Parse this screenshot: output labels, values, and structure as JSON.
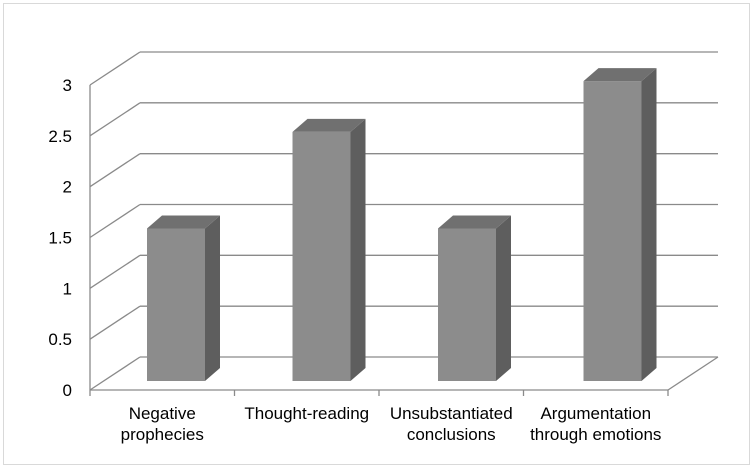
{
  "chart_data": {
    "type": "bar",
    "categories": [
      [
        "Negative",
        "prophecies"
      ],
      [
        "Thought-reading"
      ],
      [
        "Unsubstantiated",
        "conclusions"
      ],
      [
        "Argumentation",
        "through emotions"
      ]
    ],
    "values": [
      1.5,
      2.45,
      1.5,
      2.95
    ],
    "ylim": [
      0,
      3
    ],
    "yticks": [
      "0",
      "0.5",
      "1",
      "1.5",
      "2",
      "2.5",
      "3"
    ],
    "grid": true,
    "legend": "none",
    "colors": {
      "bar_front": "#8c8c8c",
      "bar_side": "#5e5e5e",
      "bar_top": "#707070",
      "grid": "#8a8a8a",
      "axis": "#8a8a8a"
    }
  }
}
